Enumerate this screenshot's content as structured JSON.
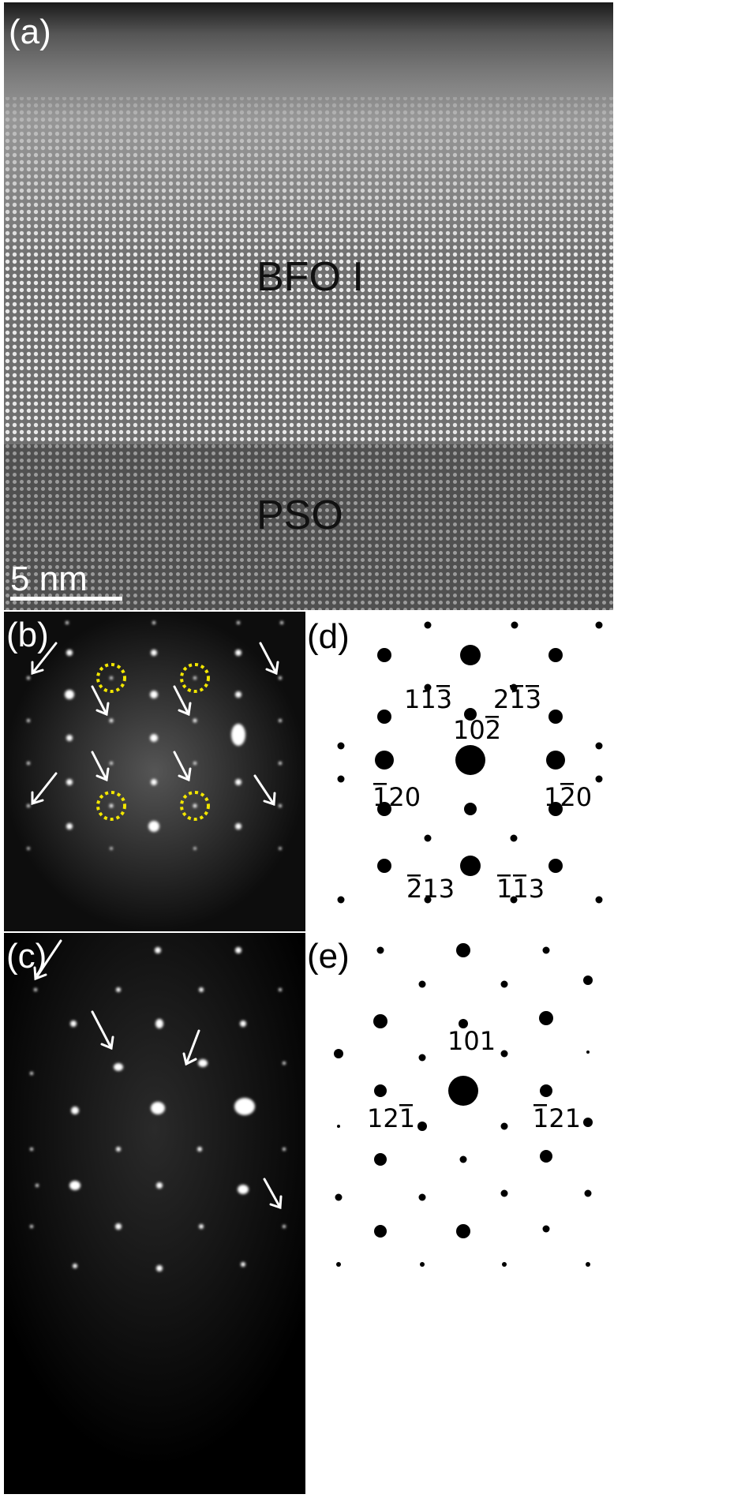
{
  "panel_a": {
    "label": "(a)",
    "upper_layer": "BFO I",
    "lower_layer": "PSO",
    "scale_bar": "5 nm"
  },
  "panel_b": {
    "label": "(b)"
  },
  "panel_c": {
    "label": "(c)"
  },
  "panel_d": {
    "label": "(d)",
    "indices": [
      {
        "digits": "113",
        "bars": [
          2
        ]
      },
      {
        "digits": "213",
        "bars": [
          1,
          2
        ]
      },
      {
        "digits": "102",
        "bars": [
          2
        ]
      },
      {
        "digits": "120",
        "bars": [
          0
        ]
      },
      {
        "digits": "120",
        "bars": [
          1
        ]
      },
      {
        "digits": "213",
        "bars": [
          0
        ]
      },
      {
        "digits": "113",
        "bars": [
          0,
          1
        ]
      }
    ]
  },
  "panel_e": {
    "label": "(e)",
    "indices": [
      {
        "digits": "101",
        "bars": []
      },
      {
        "digits": "121",
        "bars": [
          2
        ]
      },
      {
        "digits": "121",
        "bars": [
          0
        ]
      }
    ]
  },
  "colors": {
    "circle_marker": "#f2e600",
    "arrow": "#ffffff"
  }
}
